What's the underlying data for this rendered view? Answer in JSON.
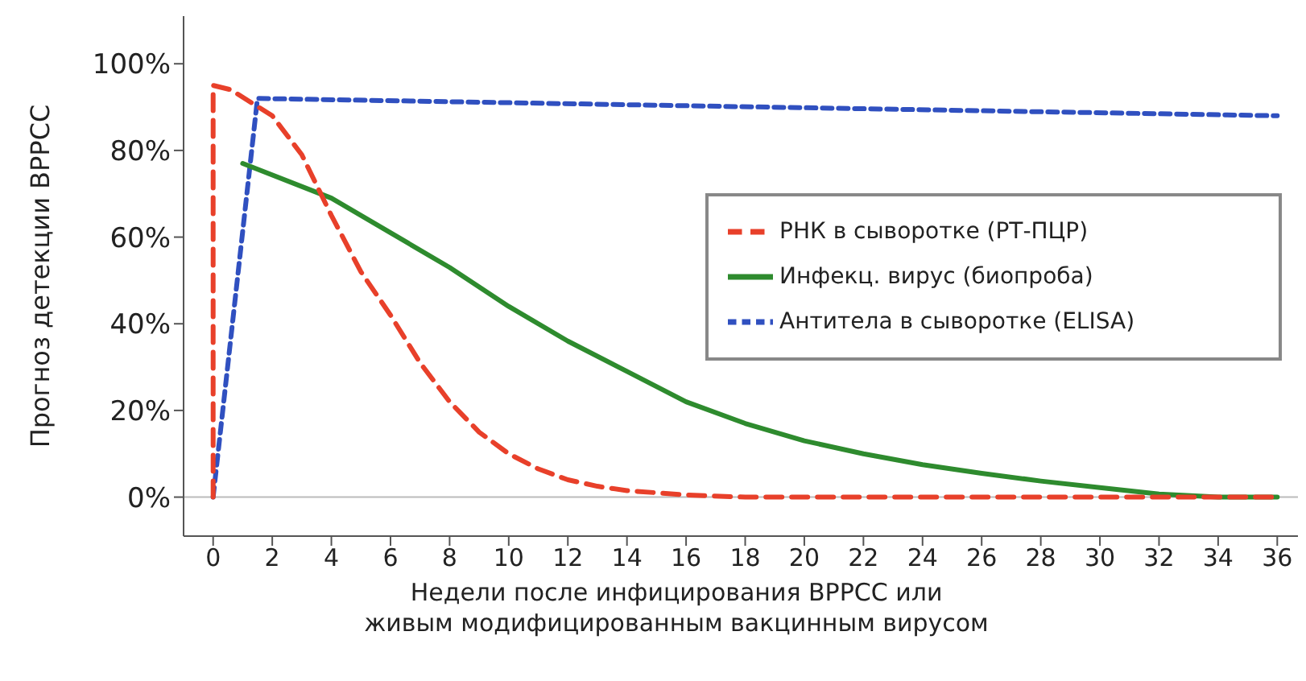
{
  "chart_data": {
    "type": "line",
    "xlabel": "Недели после инфицирования ВРРСС или\nживым модифицированным вакцинным вирусом",
    "ylabel": "Прогноз детекции ВРРСС",
    "xlim": [
      -1,
      36.7
    ],
    "xticks": [
      0,
      2,
      4,
      6,
      8,
      10,
      12,
      14,
      16,
      18,
      20,
      22,
      24,
      26,
      28,
      30,
      32,
      34,
      36
    ],
    "ylim": [
      -9,
      111
    ],
    "yticks": [
      {
        "value": 0,
        "label": "0%"
      },
      {
        "value": 20,
        "label": "20%"
      },
      {
        "value": 40,
        "label": "40%"
      },
      {
        "value": 60,
        "label": "60%"
      },
      {
        "value": 80,
        "label": "80%"
      },
      {
        "value": 100,
        "label": "100%"
      }
    ],
    "series": [
      {
        "name": "РНК в сыворотке (РТ-ПЦР)",
        "color": "#e8402a",
        "line_style": "dashed",
        "x": [
          0,
          0,
          0.6,
          2,
          3,
          4,
          5,
          6,
          7,
          8,
          9,
          10,
          11,
          12,
          13,
          14,
          16,
          18,
          36
        ],
        "values": [
          0,
          95,
          94,
          88,
          79,
          65,
          52,
          42,
          31,
          22,
          15,
          10,
          6.5,
          4,
          2.5,
          1.5,
          0.5,
          0,
          0
        ]
      },
      {
        "name": "Инфекц. вирус (биопроба)",
        "color": "#2e8b2e",
        "line_style": "solid",
        "x": [
          1,
          4,
          6,
          8,
          10,
          12,
          14,
          16,
          18,
          20,
          22,
          24,
          26,
          28,
          30,
          32,
          34,
          36
        ],
        "values": [
          77,
          69,
          61,
          53,
          44,
          36,
          29,
          22,
          17,
          13,
          10,
          7.5,
          5.5,
          3.7,
          2.2,
          0.7,
          0,
          0
        ]
      },
      {
        "name": "Антитела в сыворотке (ELISA)",
        "color": "#3050c0",
        "line_style": "dotted",
        "x": [
          0,
          1.5,
          36
        ],
        "values": [
          0,
          92,
          88
        ]
      }
    ],
    "ref_lines": [
      {
        "axis": "y",
        "value": 0,
        "color": "#bbbbbb"
      }
    ],
    "grid": false,
    "marker": "none",
    "legend": "right"
  }
}
